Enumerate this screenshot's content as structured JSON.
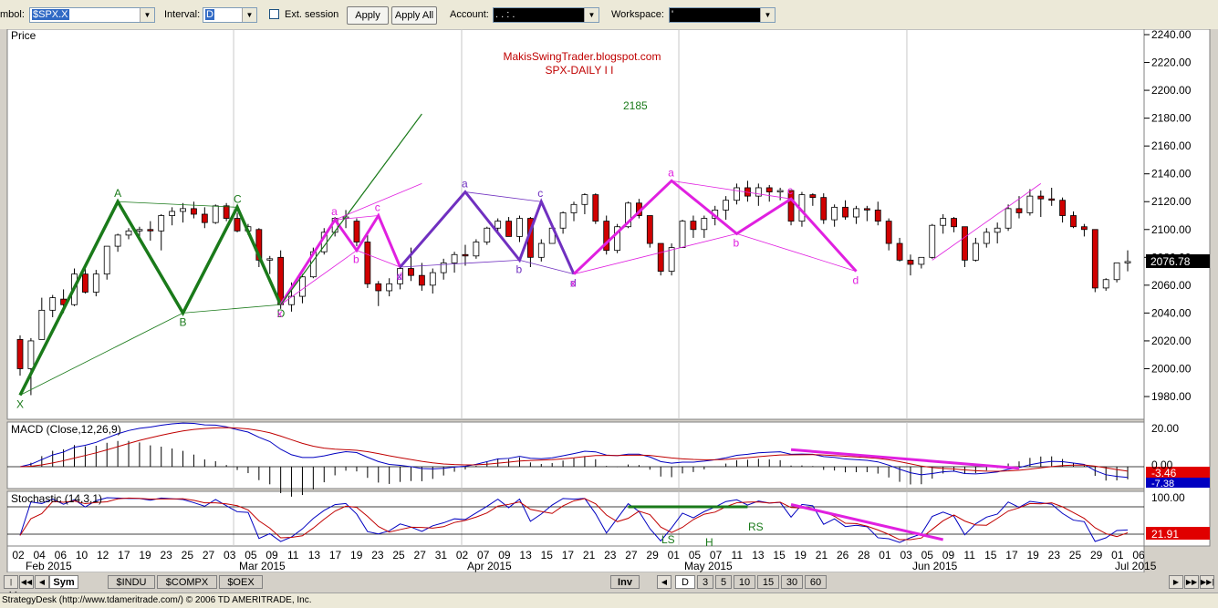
{
  "toolbar": {
    "symbol_label": "mbol:",
    "symbol_value": "$SPX.X",
    "interval_label": "Interval:",
    "interval_value": "D",
    "ext_session_label": "Ext. session",
    "apply_label": "Apply",
    "apply_all_label": "Apply All",
    "account_label": "Account:",
    "account_value": ".    .    :    .",
    "workspace_label": "Workspace:",
    "workspace_value": "'"
  },
  "chart_data": [
    {
      "type": "candlestick",
      "panel": "price",
      "panel_label": "Price",
      "title": "MakisSwingTrader.blogspot.com",
      "subtitle": "SPX-DAILY  I I",
      "ylim": [
        1965,
        2245
      ],
      "y_ticks": [
        "2240.00",
        "2220.00",
        "2200.00",
        "2180.00",
        "2160.00",
        "2140.00",
        "2120.00",
        "2100.00",
        "2080.00",
        "2060.00",
        "2040.00",
        "2020.00",
        "2000.00",
        "1980.00"
      ],
      "last_price": "2076.78",
      "x_ticks": [
        "02",
        "04",
        "06",
        "10",
        "12",
        "17",
        "19",
        "23",
        "25",
        "27",
        "03",
        "05",
        "09",
        "11",
        "13",
        "17",
        "19",
        "23",
        "25",
        "27",
        "31",
        "02",
        "07",
        "09",
        "13",
        "15",
        "17",
        "21",
        "23",
        "27",
        "29",
        "01",
        "05",
        "07",
        "11",
        "13",
        "15",
        "19",
        "21",
        "26",
        "28",
        "01",
        "03",
        "05",
        "09",
        "11",
        "15",
        "17",
        "19",
        "23",
        "25",
        "29",
        "01",
        "06"
      ],
      "month_labels": [
        "Feb 2015",
        "Mar 2015",
        "Apr 2015",
        "May 2015",
        "Jun 2015",
        "Jul 2015"
      ],
      "candles": [
        [
          2021,
          2024,
          1995,
          2000
        ],
        [
          2000,
          2022,
          1981,
          2020
        ],
        [
          2021,
          2051,
          2021,
          2042
        ],
        [
          2042,
          2053,
          2037,
          2051
        ],
        [
          2050,
          2057,
          2040,
          2046
        ],
        [
          2046,
          2072,
          2045,
          2068
        ],
        [
          2068,
          2074,
          2054,
          2055
        ],
        [
          2055,
          2071,
          2052,
          2068
        ],
        [
          2068,
          2088,
          2064,
          2088
        ],
        [
          2088,
          2097,
          2084,
          2096
        ],
        [
          2096,
          2101,
          2093,
          2099
        ],
        [
          2099,
          2102,
          2094,
          2100
        ],
        [
          2100,
          2106,
          2092,
          2099
        ],
        [
          2099,
          2111,
          2085,
          2110
        ],
        [
          2110,
          2116,
          2103,
          2113
        ],
        [
          2113,
          2119,
          2105,
          2115
        ],
        [
          2115,
          2120,
          2108,
          2111
        ],
        [
          2111,
          2116,
          2101,
          2105
        ],
        [
          2105,
          2118,
          2104,
          2117
        ],
        [
          2117,
          2119,
          2106,
          2108
        ],
        [
          2108,
          2112,
          2098,
          2099
        ],
        [
          2099,
          2104,
          2096,
          2102
        ],
        [
          2100,
          2101,
          2073,
          2078
        ],
        [
          2078,
          2081,
          2068,
          2079
        ],
        [
          2080,
          2085,
          2043,
          2046
        ],
        [
          2046,
          2062,
          2041,
          2052
        ],
        [
          2052,
          2068,
          2047,
          2066
        ],
        [
          2066,
          2087,
          2065,
          2084
        ],
        [
          2084,
          2101,
          2082,
          2098
        ],
        [
          2098,
          2109,
          2095,
          2108
        ],
        [
          2108,
          2114,
          2101,
          2109
        ],
        [
          2106,
          2108,
          2088,
          2091
        ],
        [
          2091,
          2096,
          2058,
          2061
        ],
        [
          2061,
          2063,
          2045,
          2056
        ],
        [
          2056,
          2065,
          2052,
          2061
        ],
        [
          2061,
          2073,
          2057,
          2072
        ],
        [
          2072,
          2087,
          2063,
          2067
        ],
        [
          2067,
          2076,
          2056,
          2060
        ],
        [
          2060,
          2072,
          2054,
          2069
        ],
        [
          2069,
          2079,
          2064,
          2076
        ],
        [
          2076,
          2084,
          2069,
          2082
        ],
        [
          2082,
          2089,
          2074,
          2081
        ],
        [
          2081,
          2093,
          2079,
          2091
        ],
        [
          2091,
          2102,
          2089,
          2101
        ],
        [
          2101,
          2108,
          2098,
          2106
        ],
        [
          2106,
          2109,
          2096,
          2095
        ],
        [
          2095,
          2110,
          2091,
          2108
        ],
        [
          2108,
          2109,
          2073,
          2080
        ],
        [
          2080,
          2093,
          2077,
          2090
        ],
        [
          2090,
          2103,
          2090,
          2101
        ],
        [
          2101,
          2113,
          2097,
          2112
        ],
        [
          2112,
          2120,
          2106,
          2118
        ],
        [
          2118,
          2126,
          2111,
          2125
        ],
        [
          2125,
          2126,
          2104,
          2106
        ],
        [
          2106,
          2110,
          2082,
          2085
        ],
        [
          2085,
          2104,
          2083,
          2102
        ],
        [
          2102,
          2120,
          2101,
          2119
        ],
        [
          2119,
          2122,
          2108,
          2110
        ],
        [
          2110,
          2110,
          2087,
          2090
        ],
        [
          2090,
          2090,
          2067,
          2070
        ],
        [
          2070,
          2090,
          2067,
          2087
        ],
        [
          2087,
          2107,
          2087,
          2106
        ],
        [
          2106,
          2110,
          2094,
          2100
        ],
        [
          2100,
          2110,
          2094,
          2108
        ],
        [
          2108,
          2117,
          2103,
          2114
        ],
        [
          2114,
          2124,
          2107,
          2121
        ],
        [
          2121,
          2133,
          2118,
          2130
        ],
        [
          2130,
          2135,
          2120,
          2124
        ],
        [
          2124,
          2133,
          2117,
          2130
        ],
        [
          2130,
          2132,
          2120,
          2127
        ],
        [
          2127,
          2130,
          2121,
          2128
        ],
        [
          2128,
          2128,
          2103,
          2106
        ],
        [
          2106,
          2127,
          2102,
          2125
        ],
        [
          2125,
          2126,
          2117,
          2123
        ],
        [
          2123,
          2126,
          2104,
          2107
        ],
        [
          2107,
          2118,
          2102,
          2116
        ],
        [
          2116,
          2121,
          2107,
          2109
        ],
        [
          2109,
          2117,
          2104,
          2115
        ],
        [
          2115,
          2117,
          2106,
          2114
        ],
        [
          2114,
          2120,
          2103,
          2106
        ],
        [
          2106,
          2108,
          2085,
          2090
        ],
        [
          2090,
          2094,
          2077,
          2078
        ],
        [
          2078,
          2082,
          2067,
          2075
        ],
        [
          2075,
          2080,
          2072,
          2080
        ],
        [
          2080,
          2104,
          2079,
          2103
        ],
        [
          2103,
          2111,
          2097,
          2108
        ],
        [
          2108,
          2109,
          2098,
          2102
        ],
        [
          2102,
          2102,
          2073,
          2078
        ],
        [
          2078,
          2094,
          2077,
          2090
        ],
        [
          2090,
          2101,
          2087,
          2098
        ],
        [
          2098,
          2105,
          2090,
          2101
        ],
        [
          2101,
          2118,
          2099,
          2115
        ],
        [
          2115,
          2124,
          2108,
          2112
        ],
        [
          2112,
          2129,
          2110,
          2124
        ],
        [
          2124,
          2128,
          2109,
          2122
        ],
        [
          2122,
          2130,
          2117,
          2121
        ],
        [
          2121,
          2123,
          2105,
          2110
        ],
        [
          2110,
          2113,
          2101,
          2102
        ],
        [
          2102,
          2104,
          2095,
          2100
        ],
        [
          2100,
          2100,
          2055,
          2058
        ],
        [
          2058,
          2065,
          2056,
          2064
        ],
        [
          2064,
          2076,
          2062,
          2076
        ],
        [
          2076,
          2085,
          2070,
          2077
        ]
      ],
      "patterns": [
        {
          "name": "XABCD",
          "color": "#1a7a1a",
          "points": [
            [
              "X",
              1981
            ],
            [
              "A",
              2120
            ],
            [
              "B",
              2040
            ],
            [
              "C",
              2116
            ],
            [
              "D",
              2046
            ]
          ]
        },
        {
          "name": "abcd-1",
          "color": "#e020e0",
          "points": [
            [
              "x",
              2046
            ],
            [
              "a",
              2107
            ],
            [
              "b",
              2085
            ],
            [
              "c",
              2110
            ],
            [
              "d",
              2073
            ]
          ]
        },
        {
          "name": "abcd-2",
          "color": "#7030c0",
          "points": [
            [
              "x",
              2073
            ],
            [
              "a",
              2127
            ],
            [
              "b",
              2078
            ],
            [
              "c",
              2120
            ],
            [
              "d",
              2068
            ]
          ]
        },
        {
          "name": "abcd-3",
          "color": "#e020e0",
          "points": [
            [
              "x",
              2068
            ],
            [
              "a",
              2135
            ],
            [
              "b",
              2097
            ],
            [
              "c",
              2122
            ],
            [
              "d",
              2070
            ]
          ]
        }
      ],
      "projection_label": "2185",
      "annotations": [
        "X",
        "A",
        "B",
        "C",
        "D",
        "x",
        "a",
        "b",
        "c",
        "d",
        "LS",
        "H",
        "RS"
      ]
    },
    {
      "type": "line",
      "panel": "macd",
      "panel_label": "MACD (Close,12,26,9)",
      "y_ticks": [
        "20.00",
        "0.00"
      ],
      "ylim": [
        -10,
        22
      ],
      "value_labels": [
        "-3.46",
        "-7.38"
      ]
    },
    {
      "type": "line",
      "panel": "stochastic",
      "panel_label": "Stochastic (14,3,1)",
      "y_ticks": [
        "100.00"
      ],
      "ylim": [
        0,
        100
      ],
      "value_labels": [
        "21.91"
      ],
      "head_shoulders": [
        "LS",
        "H",
        "RS"
      ]
    }
  ],
  "bottom": {
    "sym_tab": "Sym",
    "tabs": [
      "$INDU",
      "$COMPX",
      "$OEX"
    ],
    "inv_label": "Inv",
    "intervals": [
      "D",
      "3",
      "5",
      "10",
      "15",
      "30",
      "60"
    ]
  },
  "status": "StrategyDesk (http://www.tdameritrade.com/) © 2006 TD AMERITRADE, Inc."
}
